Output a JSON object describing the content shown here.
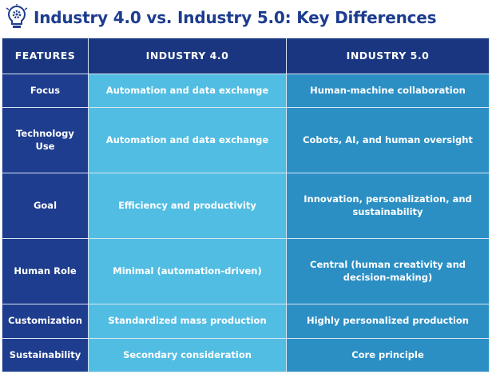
{
  "header": {
    "title": "Industry 4.0 vs. Industry 5.0: Key Differences"
  },
  "table": {
    "columns": [
      "FEATURES",
      "INDUSTRY 4.0",
      "INDUSTRY 5.0"
    ],
    "rows": [
      [
        "Focus",
        "Automation and data exchange",
        "Human-machine collaboration"
      ],
      [
        "Technology Use",
        "Automation and data exchange",
        "Cobots, AI, and human oversight"
      ],
      [
        "Goal",
        "Efficiency and productivity",
        "Innovation, personalization, and sustainability"
      ],
      [
        "Human Role",
        "Minimal (automation-driven)",
        "Central (human creativity and decision-making)"
      ],
      [
        "Customization",
        "Standardized mass production",
        "Highly personalized production"
      ],
      [
        "Sustainability",
        "Secondary consideration",
        "Core principle"
      ]
    ]
  }
}
